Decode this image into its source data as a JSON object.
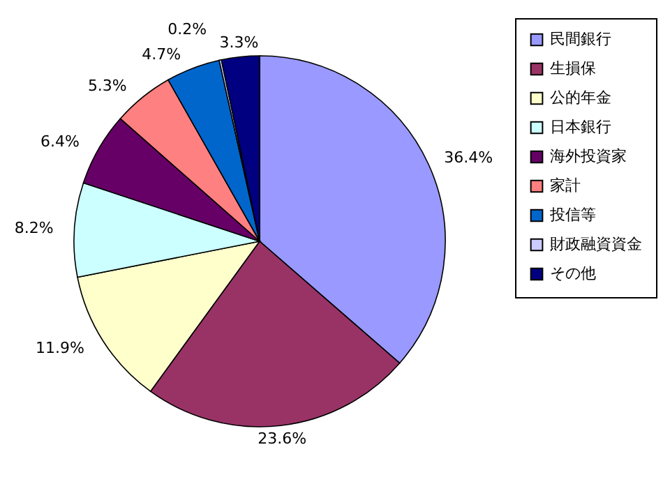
{
  "chart_data": {
    "type": "pie",
    "categories": [
      "民間銀行",
      "生損保",
      "公的年金",
      "日本銀行",
      "海外投資家",
      "家計",
      "投信等",
      "財政融資資金",
      "その他"
    ],
    "values": [
      36.4,
      23.6,
      11.9,
      8.2,
      6.4,
      5.3,
      4.7,
      0.2,
      3.3
    ],
    "colors": [
      "#9999ff",
      "#993366",
      "#ffffcc",
      "#ccffff",
      "#660066",
      "#ff8080",
      "#0066cc",
      "#ccccff",
      "#000080"
    ],
    "value_labels": [
      "36.4%",
      "23.6%",
      "11.9%",
      "8.2%",
      "6.4%",
      "5.3%",
      "4.7%",
      "0.2%",
      "3.3%"
    ],
    "legend": "right"
  }
}
